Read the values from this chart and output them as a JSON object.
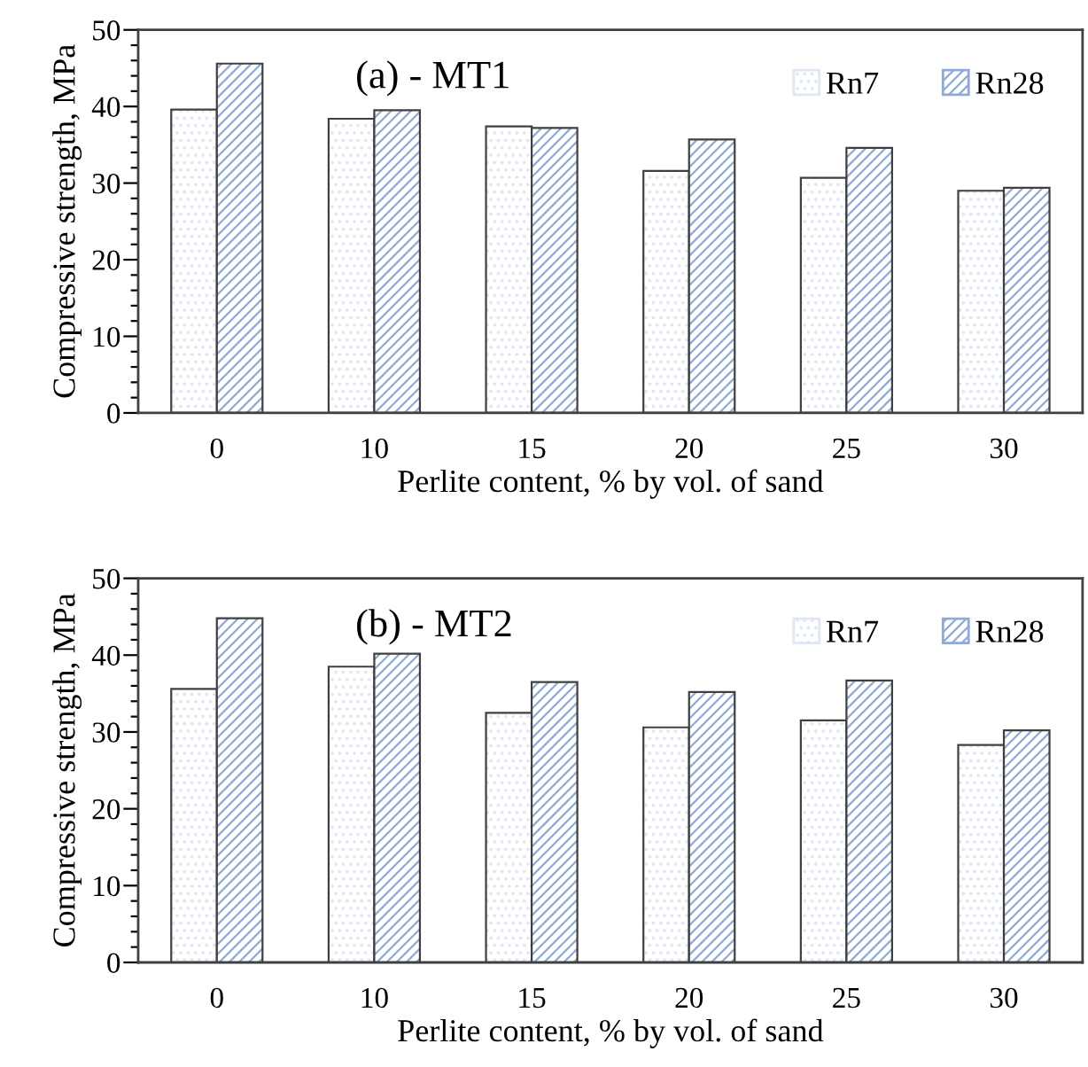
{
  "chart_data": [
    {
      "type": "bar",
      "title": "(a) - MT1",
      "xlabel": "Perlite content, % by vol. of sand",
      "ylabel": "Compressive strength, MPa",
      "categories": [
        "0",
        "10",
        "15",
        "20",
        "25",
        "30"
      ],
      "series": [
        {
          "name": "Rn7",
          "color": "#dfe6f5",
          "values": [
            39.6,
            38.4,
            37.4,
            31.6,
            30.7,
            29.0
          ]
        },
        {
          "name": "Rn28",
          "color": "#8eaadb",
          "values": [
            45.6,
            39.5,
            37.2,
            35.7,
            34.6,
            29.4
          ]
        }
      ],
      "ylim": [
        0,
        50
      ],
      "yticks": [
        0,
        {
          "value": 2,
          "label": null
        },
        {
          "value": 4,
          "label": null
        },
        {
          "value": 6,
          "label": null
        },
        {
          "value": 8,
          "label": null
        },
        10,
        {
          "value": 12,
          "label": null
        },
        {
          "value": 14,
          "label": null
        },
        {
          "value": 16,
          "label": null
        },
        {
          "value": 18,
          "label": null
        },
        20,
        {
          "value": 22,
          "label": null
        },
        {
          "value": 24,
          "label": null
        },
        {
          "value": 26,
          "label": null
        },
        {
          "value": 28,
          "label": null
        },
        30,
        {
          "value": 32,
          "label": null
        },
        {
          "value": 34,
          "label": null
        },
        {
          "value": 36,
          "label": null
        },
        {
          "value": 38,
          "label": null
        },
        40,
        {
          "value": 42,
          "label": null
        },
        {
          "value": 44,
          "label": null
        },
        {
          "value": 46,
          "label": null
        },
        {
          "value": 48,
          "label": null
        },
        50
      ],
      "grid": false,
      "legend": "top right"
    },
    {
      "type": "bar",
      "title": "(b) - MT2",
      "xlabel": "Perlite content, % by vol. of sand",
      "ylabel": "Compressive strength, MPa",
      "categories": [
        "0",
        "10",
        "15",
        "20",
        "25",
        "30"
      ],
      "series": [
        {
          "name": "Rn7",
          "color": "#dfe6f5",
          "values": [
            35.6,
            38.5,
            32.5,
            30.6,
            31.5,
            28.3
          ]
        },
        {
          "name": "Rn28",
          "color": "#8eaadb",
          "values": [
            44.8,
            40.2,
            36.5,
            35.2,
            36.7,
            30.2
          ]
        }
      ],
      "ylim": [
        0,
        50
      ],
      "yticks": [
        0,
        {
          "value": 2,
          "label": null
        },
        {
          "value": 4,
          "label": null
        },
        {
          "value": 6,
          "label": null
        },
        {
          "value": 8,
          "label": null
        },
        10,
        {
          "value": 12,
          "label": null
        },
        {
          "value": 14,
          "label": null
        },
        {
          "value": 16,
          "label": null
        },
        {
          "value": 18,
          "label": null
        },
        20,
        {
          "value": 22,
          "label": null
        },
        {
          "value": 24,
          "label": null
        },
        {
          "value": 26,
          "label": null
        },
        {
          "value": 28,
          "label": null
        },
        30,
        {
          "value": 32,
          "label": null
        },
        {
          "value": 34,
          "label": null
        },
        {
          "value": 36,
          "label": null
        },
        {
          "value": 38,
          "label": null
        },
        40,
        {
          "value": 42,
          "label": null
        },
        {
          "value": 44,
          "label": null
        },
        {
          "value": 46,
          "label": null
        },
        {
          "value": 48,
          "label": null
        },
        50
      ],
      "grid": false,
      "legend": "top right"
    }
  ]
}
